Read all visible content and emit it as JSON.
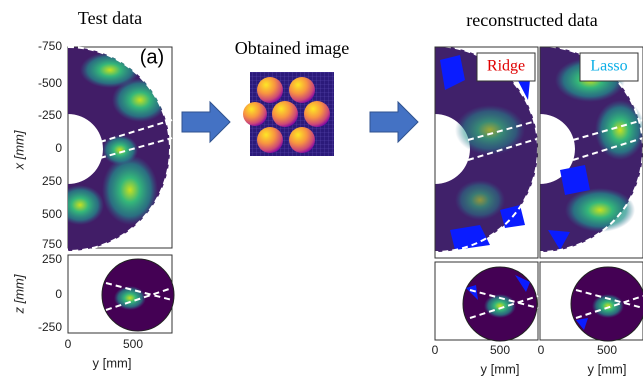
{
  "left_panel": {
    "title": "Test data",
    "label": "(a)",
    "y_axis_label": "x [mm]",
    "y_ticks": [
      "-750",
      "-500",
      "-250",
      "0",
      "250",
      "500",
      "750"
    ],
    "z_axis_label": "z [mm]",
    "z_ticks": [
      "250",
      "0",
      "-250"
    ],
    "x_ticks": [
      "0",
      "500"
    ],
    "x_axis_label": "y [mm]"
  },
  "middle_panel": {
    "title": "Obtained image"
  },
  "right_panel": {
    "title": "reconstructed data",
    "methods": [
      {
        "label": "Ridge"
      },
      {
        "label": "Lasso"
      }
    ],
    "x_ticks": [
      "0",
      "500"
    ],
    "x_axis_label": "y [mm]"
  }
}
